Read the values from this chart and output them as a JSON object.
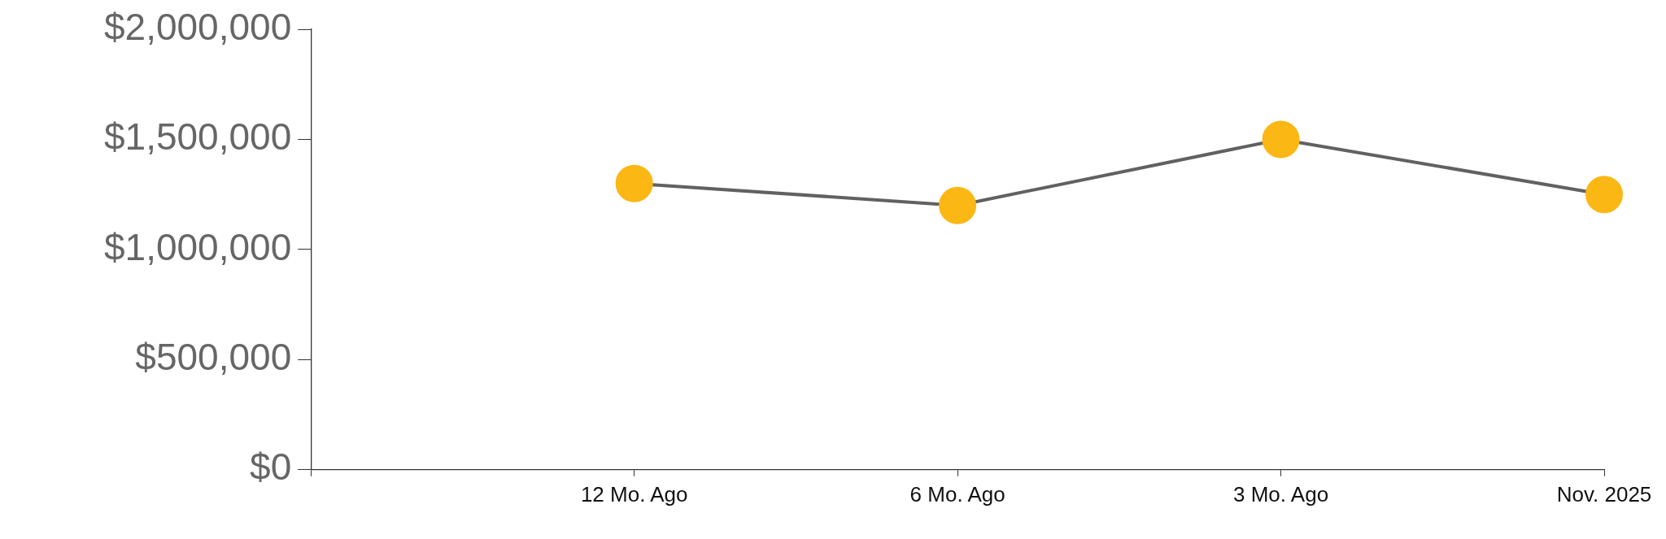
{
  "chart_data": {
    "type": "line",
    "categories": [
      null,
      "12 Mo. Ago",
      "6 Mo. Ago",
      "3 Mo. Ago",
      "Nov. 2025"
    ],
    "series": [
      {
        "color": "#fbb714",
        "values": [
          null,
          1300000,
          1200000,
          1500000,
          1250000
        ]
      }
    ],
    "ylim": [
      0,
      2000000
    ],
    "yticks": [
      {
        "value": 0,
        "label": "$0"
      },
      {
        "value": 500000,
        "label": "$500,000"
      },
      {
        "value": 1000000,
        "label": "$1,000,000"
      },
      {
        "value": 1500000,
        "label": "$1,500,000"
      },
      {
        "value": 2000000,
        "label": "$2,000,000"
      }
    ],
    "grid": false,
    "legend": false,
    "marker": "circle",
    "line_style": "solid"
  }
}
